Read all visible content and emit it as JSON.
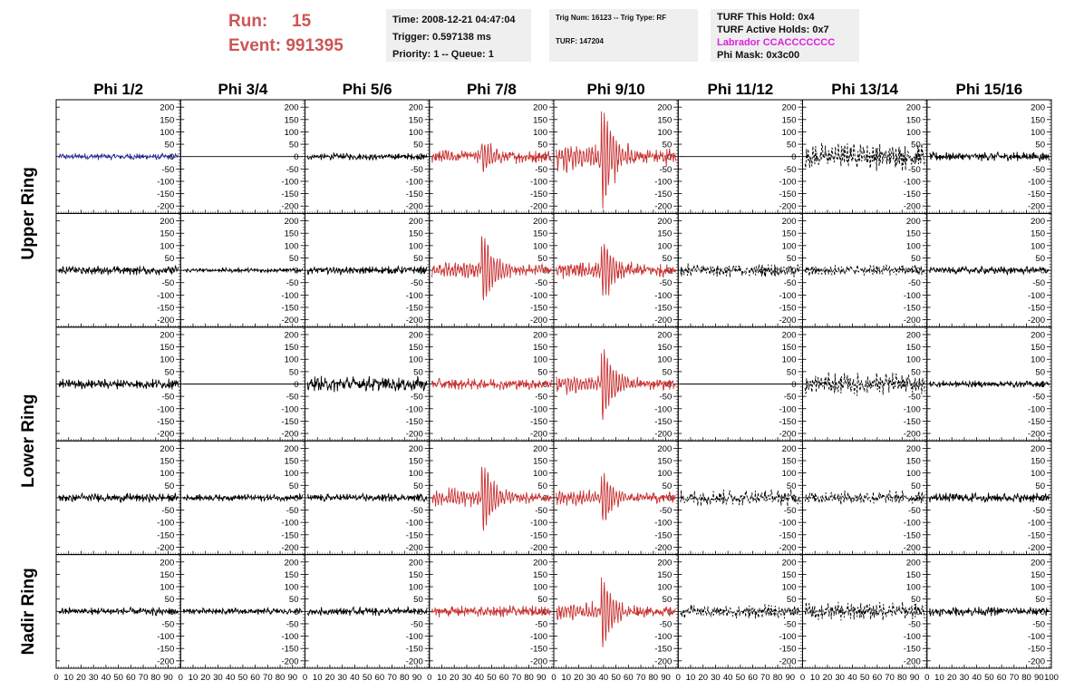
{
  "header": {
    "run_label": "Run:",
    "run_value": "15",
    "event_label": "Event:",
    "event_value": "991395",
    "time": "Time: 2008-12-21 04:47:04",
    "trigger": "Trigger: 0.597138 ms",
    "priority": "Priority: 1 -- Queue: 1",
    "trig_num": "Trig Num: 16123 -- Trig Type: RF",
    "turf": "TURF: 147204",
    "turf_hold": "TURF This Hold: 0x4",
    "turf_active": "TURF Active Holds: 0x7",
    "labrador": "Labrador CCACCCCCCC",
    "phi_mask": "Phi Mask: 0x3c00"
  },
  "colors": {
    "header_red": "#cc5555",
    "trace_black": "#000000",
    "trace_red": "#c83232",
    "trace_blue": "#2a2a8c",
    "labrador": "#e020e0"
  },
  "chart_data": {
    "type": "line",
    "columns": [
      "Phi 1/2",
      "Phi 3/4",
      "Phi 5/6",
      "Phi 7/8",
      "Phi 9/10",
      "Phi 11/12",
      "Phi 13/14",
      "Phi 15/16"
    ],
    "ring_labels": [
      "Upper Ring",
      "Lower Ring",
      "Nadir Ring"
    ],
    "xlim": [
      0,
      100
    ],
    "ylim": [
      -230,
      230
    ],
    "x_ticks": [
      "0",
      "10",
      "20",
      "30",
      "40",
      "50",
      "60",
      "70",
      "80",
      "90",
      "100"
    ],
    "y_ticks": [
      "200",
      "150",
      "100",
      "50",
      "0",
      "-50",
      "-100",
      "-150",
      "-200"
    ],
    "rows": [
      {
        "style": [
          "blue",
          "flat",
          "black",
          "red",
          "red",
          "flat",
          "dashed",
          "black"
        ],
        "amp": [
          15,
          0,
          15,
          30,
          40,
          0,
          60,
          20
        ],
        "burst": [
          0,
          0,
          0,
          55,
          200,
          0,
          0,
          0
        ]
      },
      {
        "style": [
          "black",
          "black",
          "black",
          "red",
          "red",
          "dashed",
          "dashed",
          "black"
        ],
        "amp": [
          20,
          10,
          18,
          25,
          30,
          30,
          25,
          18
        ],
        "burst": [
          0,
          0,
          0,
          140,
          120,
          0,
          0,
          0
        ]
      },
      {
        "style": [
          "black",
          "flat",
          "black",
          "red",
          "red",
          "flat",
          "dashed",
          "black"
        ],
        "amp": [
          22,
          0,
          35,
          25,
          25,
          0,
          50,
          15
        ],
        "burst": [
          0,
          0,
          0,
          0,
          150,
          0,
          0,
          0
        ]
      },
      {
        "style": [
          "black",
          "black",
          "black",
          "red",
          "red",
          "dashed",
          "dashed",
          "black"
        ],
        "amp": [
          20,
          15,
          18,
          25,
          25,
          35,
          30,
          22
        ],
        "burst": [
          0,
          0,
          0,
          130,
          100,
          0,
          0,
          0
        ]
      },
      {
        "style": [
          "black",
          "black",
          "black",
          "red",
          "red",
          "dashed",
          "dashed",
          "black"
        ],
        "amp": [
          18,
          15,
          18,
          25,
          25,
          30,
          40,
          20
        ],
        "burst": [
          0,
          0,
          0,
          0,
          130,
          0,
          0,
          0
        ]
      }
    ]
  }
}
